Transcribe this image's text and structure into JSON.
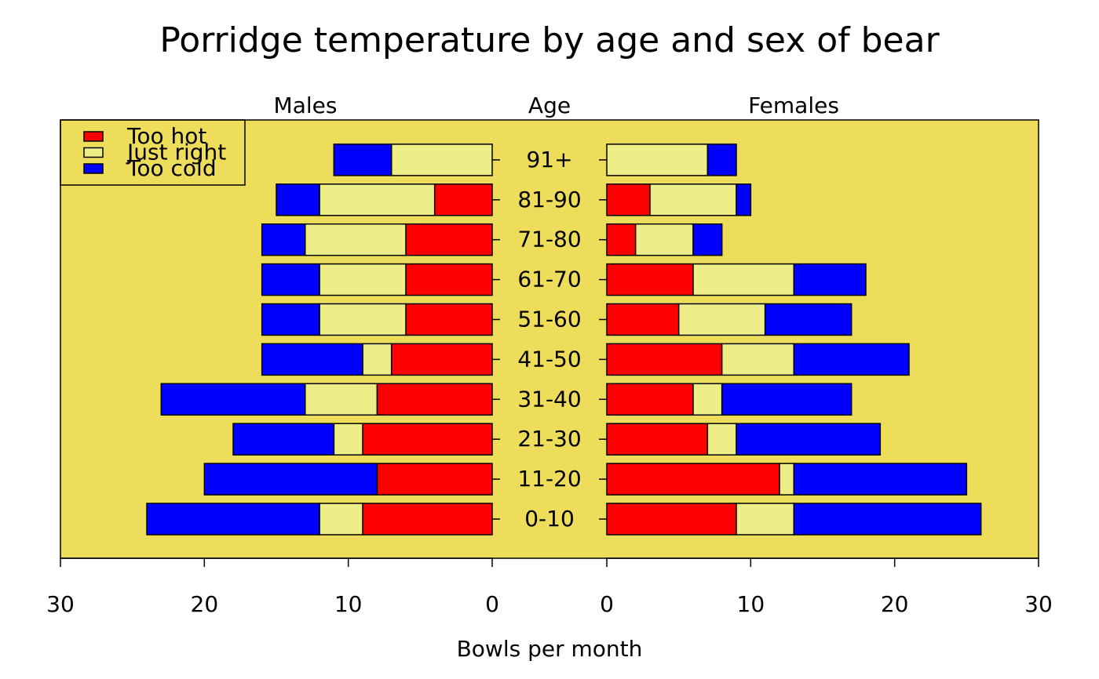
{
  "chart_data": {
    "type": "pyramid",
    "title": "Porridge temperature by age and sex of bear",
    "xlabel": "Bowls per month",
    "center_label": "Age",
    "left_label": "Males",
    "right_label": "Females",
    "background": "#eedd5a",
    "legend": "top-left",
    "categories": [
      "0-10",
      "11-20",
      "21-30",
      "31-40",
      "41-50",
      "51-60",
      "61-70",
      "71-80",
      "81-90",
      "91+"
    ],
    "xlim": [
      0,
      30
    ],
    "xticks": [
      0,
      10,
      20,
      30
    ],
    "series": [
      {
        "name": "Too hot",
        "color": "#ff0000",
        "left": [
          9,
          8,
          9,
          8,
          7,
          6,
          6,
          6,
          4,
          0
        ],
        "right": [
          9,
          12,
          7,
          6,
          8,
          5,
          6,
          2,
          3,
          0
        ]
      },
      {
        "name": "Just right",
        "color": "#eeee88",
        "left": [
          3,
          0,
          2,
          5,
          2,
          6,
          6,
          7,
          8,
          7
        ],
        "right": [
          4,
          1,
          2,
          2,
          5,
          6,
          7,
          4,
          6,
          7
        ]
      },
      {
        "name": "Too cold",
        "color": "#0000ff",
        "left": [
          12,
          12,
          7,
          10,
          7,
          4,
          4,
          3,
          3,
          4
        ],
        "right": [
          13,
          12,
          10,
          9,
          8,
          6,
          5,
          2,
          1,
          2
        ]
      }
    ]
  }
}
